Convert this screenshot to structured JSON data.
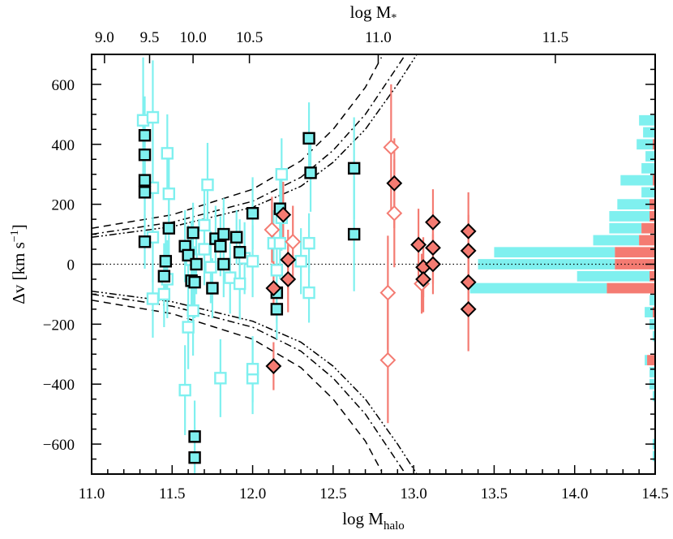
{
  "chart_data": {
    "type": "scatter",
    "title": "",
    "xlabel": "log M_halo",
    "xlabel_main": "log M",
    "xlabel_sub": "halo",
    "top_xlabel": "log M",
    "top_xlabel_sub": "*",
    "ylabel": "Δv [km s⁻¹]",
    "ylabel_main": "Δv [km s",
    "ylabel_sup": "−1",
    "ylabel_end": "]",
    "xlim": [
      11.0,
      14.5
    ],
    "ylim": [
      -700,
      700
    ],
    "x_ticks": [
      "11.0",
      "11.5",
      "12.0",
      "12.5",
      "13.0",
      "13.5",
      "14.0",
      "14.5"
    ],
    "x_tick_values": [
      11.0,
      11.5,
      12.0,
      12.5,
      13.0,
      13.5,
      14.0,
      14.5
    ],
    "y_ticks": [
      "600",
      "400",
      "200",
      "0",
      "−200",
      "−400",
      "−600"
    ],
    "y_tick_values": [
      600,
      400,
      200,
      0,
      -200,
      -400,
      -600
    ],
    "top_ticks": [
      "9.0",
      "9.5",
      "10.0",
      "10.5",
      "11.0",
      "11.5"
    ],
    "top_tick_halo_positions": [
      11.08,
      11.36,
      11.63,
      11.98,
      12.78,
      13.88
    ],
    "colors": {
      "cyan": "#7FF0EF",
      "salmon": "#F47B72",
      "outline": "#000000"
    },
    "series": [
      {
        "name": "cyan filled squares",
        "marker": "square",
        "fill": "cyan",
        "edge": "black",
        "points": [
          [
            11.33,
            430,
            130
          ],
          [
            11.33,
            365,
            120
          ],
          [
            11.33,
            280,
            100
          ],
          [
            11.33,
            240,
            90
          ],
          [
            11.33,
            75,
            90
          ],
          [
            11.46,
            10,
            110
          ],
          [
            11.45,
            -40,
            110
          ],
          [
            11.48,
            120,
            120
          ],
          [
            11.58,
            60,
            120
          ],
          [
            11.6,
            30,
            100
          ],
          [
            11.62,
            -55,
            110
          ],
          [
            11.63,
            105,
            100
          ],
          [
            11.64,
            -60,
            120
          ],
          [
            11.65,
            0,
            100
          ],
          [
            11.64,
            -575,
            120
          ],
          [
            11.64,
            -645,
            100
          ],
          [
            11.75,
            -80,
            100
          ],
          [
            11.77,
            85,
            110
          ],
          [
            11.8,
            60,
            100
          ],
          [
            11.82,
            100,
            120
          ],
          [
            11.82,
            0,
            110
          ],
          [
            11.9,
            90,
            90
          ],
          [
            11.92,
            40,
            110
          ],
          [
            12.0,
            170,
            120
          ],
          [
            12.15,
            -95,
            100
          ],
          [
            12.15,
            -150,
            100
          ],
          [
            12.17,
            185,
            120
          ],
          [
            12.35,
            420,
            120
          ],
          [
            12.36,
            305,
            130
          ],
          [
            12.63,
            320,
            170
          ],
          [
            12.63,
            100,
            190
          ]
        ]
      },
      {
        "name": "cyan open squares",
        "marker": "square",
        "fill": "none",
        "edge": "cyan",
        "points": [
          [
            11.32,
            480,
            210
          ],
          [
            11.38,
            490,
            190
          ],
          [
            11.38,
            255,
            160
          ],
          [
            11.38,
            90,
            150
          ],
          [
            11.38,
            -115,
            130
          ],
          [
            11.47,
            370,
            130
          ],
          [
            11.48,
            235,
            130
          ],
          [
            11.47,
            -50,
            130
          ],
          [
            11.45,
            -100,
            110
          ],
          [
            11.58,
            -420,
            150
          ],
          [
            11.6,
            -210,
            140
          ],
          [
            11.63,
            -155,
            150
          ],
          [
            11.62,
            15,
            130
          ],
          [
            11.7,
            130,
            130
          ],
          [
            11.72,
            265,
            140
          ],
          [
            11.7,
            50,
            120
          ],
          [
            11.74,
            -10,
            120
          ],
          [
            11.8,
            -380,
            130
          ],
          [
            11.86,
            -45,
            120
          ],
          [
            11.92,
            -65,
            120
          ],
          [
            11.95,
            20,
            120
          ],
          [
            12.0,
            -380,
            120
          ],
          [
            12.0,
            -350,
            110
          ],
          [
            12.0,
            10,
            120
          ],
          [
            12.13,
            70,
            110
          ],
          [
            12.15,
            -20,
            110
          ],
          [
            12.18,
            300,
            120
          ],
          [
            12.18,
            155,
            110
          ],
          [
            12.17,
            70,
            120
          ],
          [
            12.3,
            10,
            110
          ],
          [
            12.35,
            70,
            100
          ],
          [
            12.35,
            -95,
            100
          ]
        ]
      },
      {
        "name": "salmon filled diamonds",
        "marker": "diamond",
        "fill": "salmon",
        "edge": "black",
        "points": [
          [
            12.13,
            -340,
            80
          ],
          [
            12.13,
            -80,
            90
          ],
          [
            12.19,
            165,
            110
          ],
          [
            12.22,
            15,
            100
          ],
          [
            12.22,
            -50,
            110
          ],
          [
            12.88,
            270,
            150
          ],
          [
            13.03,
            65,
            120
          ],
          [
            13.06,
            -10,
            100
          ],
          [
            13.06,
            -50,
            110
          ],
          [
            13.12,
            140,
            110
          ],
          [
            13.12,
            55,
            120
          ],
          [
            13.12,
            0,
            100
          ],
          [
            13.34,
            110,
            130
          ],
          [
            13.34,
            45,
            120
          ],
          [
            13.34,
            -60,
            110
          ],
          [
            13.34,
            -150,
            140
          ]
        ]
      },
      {
        "name": "salmon open diamonds",
        "marker": "diamond",
        "fill": "none",
        "edge": "salmon",
        "points": [
          [
            12.12,
            115,
            110
          ],
          [
            12.25,
            75,
            120
          ],
          [
            12.86,
            390,
            210
          ],
          [
            12.88,
            170,
            180
          ],
          [
            12.84,
            -95,
            190
          ],
          [
            12.84,
            -320,
            210
          ],
          [
            13.05,
            -65,
            100
          ]
        ]
      }
    ],
    "histogram": {
      "baseline_x": 14.5,
      "bin_width_kms": 40,
      "bins": [
        {
          "center": 480,
          "cyan": 0.2,
          "salmon": 0.0
        },
        {
          "center": 440,
          "cyan": 0.15,
          "salmon": 0.0
        },
        {
          "center": 400,
          "cyan": 0.2,
          "salmon": 0.03
        },
        {
          "center": 360,
          "cyan": 0.12,
          "salmon": 0.0
        },
        {
          "center": 320,
          "cyan": 0.17,
          "salmon": 0.0
        },
        {
          "center": 280,
          "cyan": 0.4,
          "salmon": 0.03
        },
        {
          "center": 240,
          "cyan": 0.17,
          "salmon": 0.0
        },
        {
          "center": 200,
          "cyan": 0.4,
          "salmon": 0.07
        },
        {
          "center": 160,
          "cyan": 0.5,
          "salmon": 0.07
        },
        {
          "center": 120,
          "cyan": 0.4,
          "salmon": 0.17
        },
        {
          "center": 80,
          "cyan": 0.57,
          "salmon": 0.2
        },
        {
          "center": 40,
          "cyan": 1.5,
          "salmon": 0.5
        },
        {
          "center": 0,
          "cyan": 1.7,
          "salmon": 0.5
        },
        {
          "center": -40,
          "cyan": 0.9,
          "salmon": 0.07
        },
        {
          "center": -80,
          "cyan": 1.7,
          "salmon": 0.6
        },
        {
          "center": -120,
          "cyan": 0.07,
          "salmon": 0.0
        },
        {
          "center": -160,
          "cyan": 0.1,
          "salmon": 0.03
        },
        {
          "center": -200,
          "cyan": 0.07,
          "salmon": 0.0
        },
        {
          "center": -240,
          "cyan": 0.03,
          "salmon": 0.0
        },
        {
          "center": -320,
          "cyan": 0.03,
          "salmon": 0.1
        },
        {
          "center": -360,
          "cyan": 0.07,
          "salmon": 0.0
        },
        {
          "center": -400,
          "cyan": 0.07,
          "salmon": 0.0
        },
        {
          "center": -440,
          "cyan": 0.03,
          "salmon": 0.0
        },
        {
          "center": -600,
          "cyan": 0.03,
          "salmon": 0.0
        },
        {
          "center": -640,
          "cyan": 0.03,
          "salmon": 0.0
        }
      ]
    },
    "curves": [
      {
        "name": "escape-velocity-dashed",
        "style": "dashed",
        "points": [
          [
            11.0,
            120
          ],
          [
            11.5,
            165
          ],
          [
            12.0,
            250
          ],
          [
            12.3,
            345
          ],
          [
            12.5,
            450
          ],
          [
            12.7,
            590
          ],
          [
            12.8,
            690
          ]
        ]
      },
      {
        "name": "escape-velocity-dashdot",
        "style": "dashdot",
        "points": [
          [
            11.0,
            100
          ],
          [
            11.5,
            140
          ],
          [
            12.0,
            210
          ],
          [
            12.3,
            290
          ],
          [
            12.5,
            380
          ],
          [
            12.7,
            500
          ],
          [
            12.9,
            660
          ],
          [
            12.95,
            700
          ]
        ]
      },
      {
        "name": "escape-velocity-dashdotdot",
        "style": "dashdotdot",
        "points": [
          [
            11.0,
            90
          ],
          [
            11.5,
            125
          ],
          [
            12.0,
            190
          ],
          [
            12.3,
            260
          ],
          [
            12.5,
            340
          ],
          [
            12.7,
            450
          ],
          [
            12.9,
            600
          ],
          [
            13.02,
            700
          ]
        ]
      }
    ],
    "zero_line": 0
  }
}
